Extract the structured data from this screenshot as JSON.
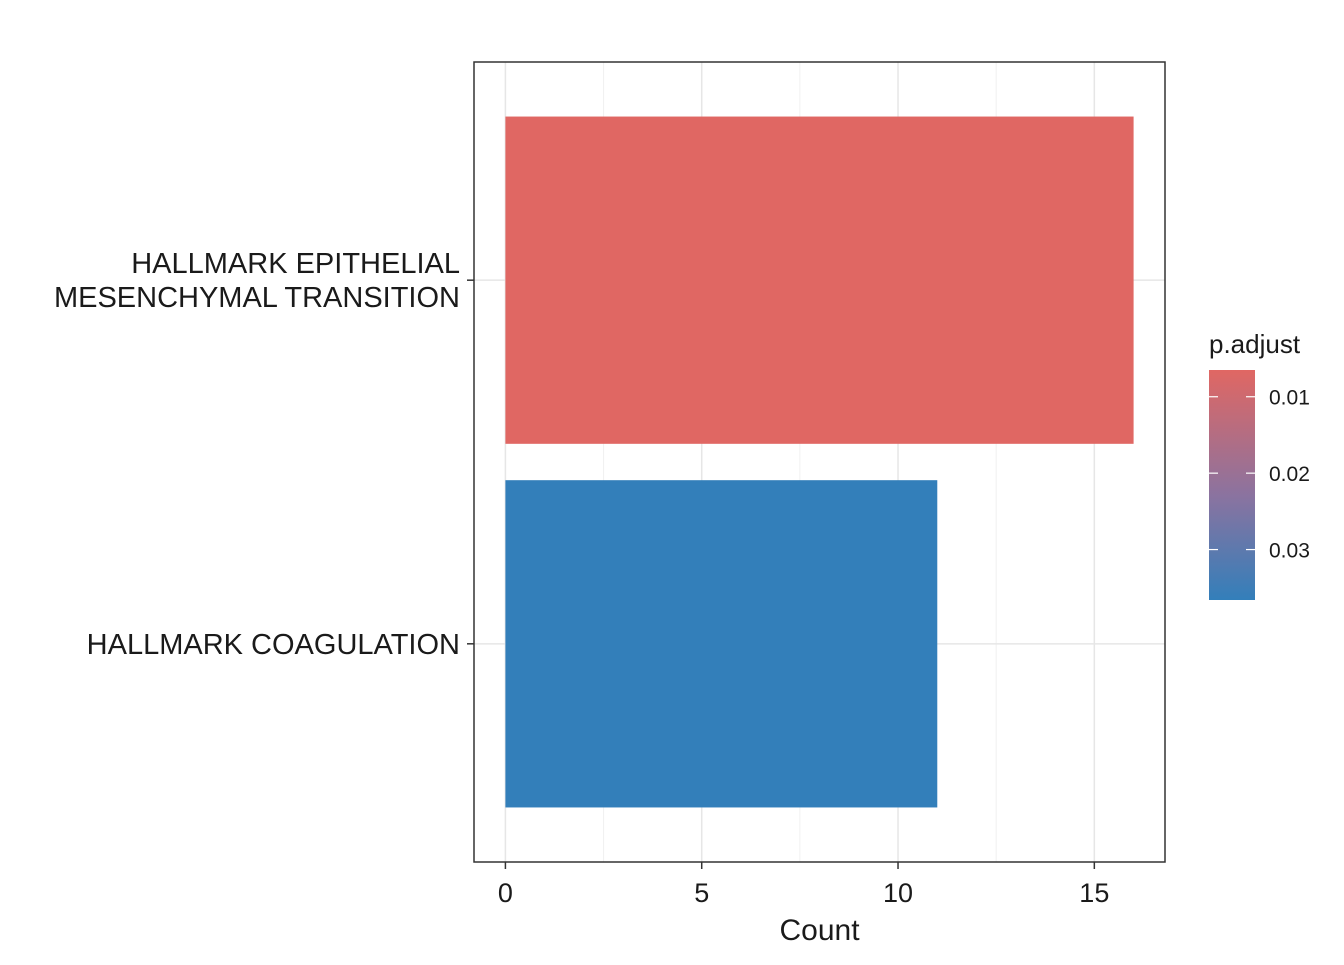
{
  "chart_data": {
    "type": "bar",
    "orientation": "horizontal",
    "categories": [
      "HALLMARK EPITHELIAL MESENCHYMAL TRANSITION",
      "HALLMARK COAGULATION"
    ],
    "category_lines": [
      [
        "HALLMARK EPITHELIAL",
        "MESENCHYMAL TRANSITION"
      ],
      [
        "HALLMARK COAGULATION"
      ]
    ],
    "values": [
      16,
      11
    ],
    "p_adjust": [
      0.0065,
      0.0366
    ],
    "bar_colors": [
      "#E06763",
      "#337FBA"
    ],
    "xlabel": "Count",
    "ylabel": "",
    "xlim": [
      -0.8,
      16.8
    ],
    "x_ticks": [
      0,
      5,
      10,
      15
    ],
    "x_tick_labels": [
      "0",
      "5",
      "10",
      "15"
    ],
    "grid": true,
    "legend": {
      "title": "p.adjust",
      "placement": "right",
      "type": "colorbar",
      "range": [
        0.0065,
        0.0366
      ],
      "ticks": [
        0.01,
        0.02,
        0.03
      ],
      "tick_labels": [
        "0.01",
        "0.02",
        "0.03"
      ],
      "color_low": "#E06763",
      "color_high": "#337FBA"
    }
  }
}
